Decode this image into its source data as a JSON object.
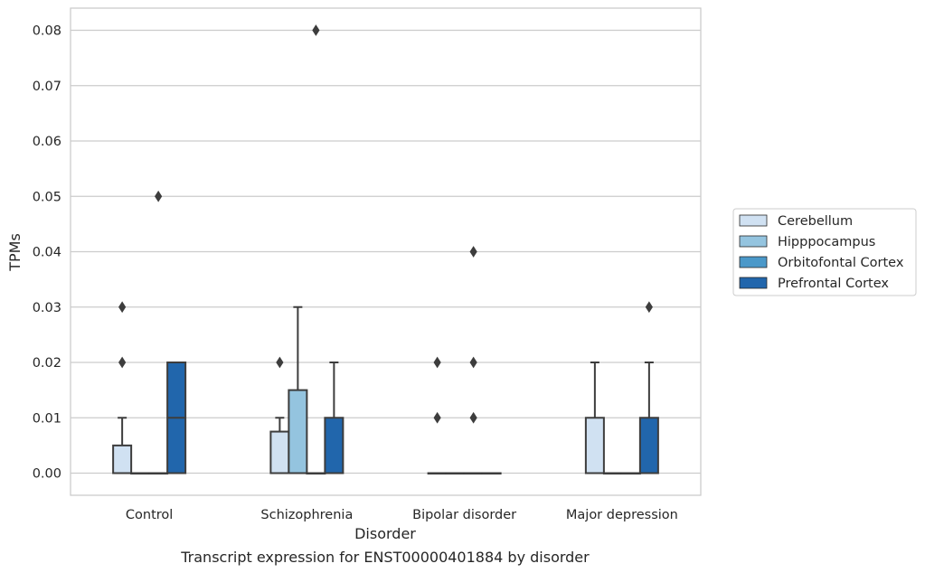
{
  "chart_data": {
    "type": "box",
    "title": "Transcript expression for ENST00000401884 by disorder",
    "xlabel": "Disorder",
    "ylabel": "TPMs",
    "ylim": [
      -0.004,
      0.084
    ],
    "yticks": [
      0.0,
      0.01,
      0.02,
      0.03,
      0.04,
      0.05,
      0.06,
      0.07,
      0.08
    ],
    "ytick_labels": [
      "0.00",
      "0.01",
      "0.02",
      "0.03",
      "0.04",
      "0.05",
      "0.06",
      "0.07",
      "0.08"
    ],
    "grid": true,
    "legend_position": "right",
    "categories": [
      "Control",
      "Schizophrenia",
      "Bipolar disorder",
      "Major depression"
    ],
    "series": [
      {
        "name": "Cerebellum",
        "color": "#d0e1f2",
        "boxes": [
          {
            "q1": 0.0,
            "median": 0.0,
            "q3": 0.005,
            "whisker_low": 0.0,
            "whisker_high": 0.01,
            "outliers": [
              0.02,
              0.03
            ]
          },
          {
            "q1": 0.0,
            "median": 0.0,
            "q3": 0.0075,
            "whisker_low": 0.0,
            "whisker_high": 0.01,
            "outliers": [
              0.02
            ]
          },
          {
            "q1": 0.0,
            "median": 0.0,
            "q3": 0.0,
            "whisker_low": 0.0,
            "whisker_high": 0.0,
            "outliers": [
              0.01,
              0.02
            ]
          },
          {
            "q1": 0.0,
            "median": 0.0,
            "q3": 0.01,
            "whisker_low": 0.0,
            "whisker_high": 0.02,
            "outliers": []
          }
        ]
      },
      {
        "name": "Hipppocampus",
        "color": "#94c4df",
        "boxes": [
          {
            "q1": 0.0,
            "median": 0.0,
            "q3": 0.0,
            "whisker_low": 0.0,
            "whisker_high": 0.0,
            "outliers": []
          },
          {
            "q1": 0.0,
            "median": 0.0,
            "q3": 0.015,
            "whisker_low": 0.0,
            "whisker_high": 0.03,
            "outliers": []
          },
          {
            "q1": 0.0,
            "median": 0.0,
            "q3": 0.0,
            "whisker_low": 0.0,
            "whisker_high": 0.0,
            "outliers": []
          },
          {
            "q1": 0.0,
            "median": 0.0,
            "q3": 0.0,
            "whisker_low": 0.0,
            "whisker_high": 0.0,
            "outliers": []
          }
        ]
      },
      {
        "name": "Orbitofontal Cortex",
        "color": "#4a98c9",
        "boxes": [
          {
            "q1": 0.0,
            "median": 0.0,
            "q3": 0.0,
            "whisker_low": 0.0,
            "whisker_high": 0.0,
            "outliers": [
              0.05
            ]
          },
          {
            "q1": 0.0,
            "median": 0.0,
            "q3": 0.0,
            "whisker_low": 0.0,
            "whisker_high": 0.0,
            "outliers": [
              0.08
            ]
          },
          {
            "q1": 0.0,
            "median": 0.0,
            "q3": 0.0,
            "whisker_low": 0.0,
            "whisker_high": 0.0,
            "outliers": [
              0.01,
              0.02,
              0.04
            ]
          },
          {
            "q1": 0.0,
            "median": 0.0,
            "q3": 0.0,
            "whisker_low": 0.0,
            "whisker_high": 0.0,
            "outliers": []
          }
        ]
      },
      {
        "name": "Prefrontal Cortex",
        "color": "#2166ac",
        "boxes": [
          {
            "q1": 0.0,
            "median": 0.01,
            "q3": 0.02,
            "whisker_low": 0.0,
            "whisker_high": 0.02,
            "outliers": []
          },
          {
            "q1": 0.0,
            "median": 0.0,
            "q3": 0.01,
            "whisker_low": 0.0,
            "whisker_high": 0.02,
            "outliers": []
          },
          {
            "q1": 0.0,
            "median": 0.0,
            "q3": 0.0,
            "whisker_low": 0.0,
            "whisker_high": 0.0,
            "outliers": []
          },
          {
            "q1": 0.0,
            "median": 0.0,
            "q3": 0.01,
            "whisker_low": 0.0,
            "whisker_high": 0.02,
            "outliers": [
              0.03
            ]
          }
        ]
      }
    ]
  }
}
